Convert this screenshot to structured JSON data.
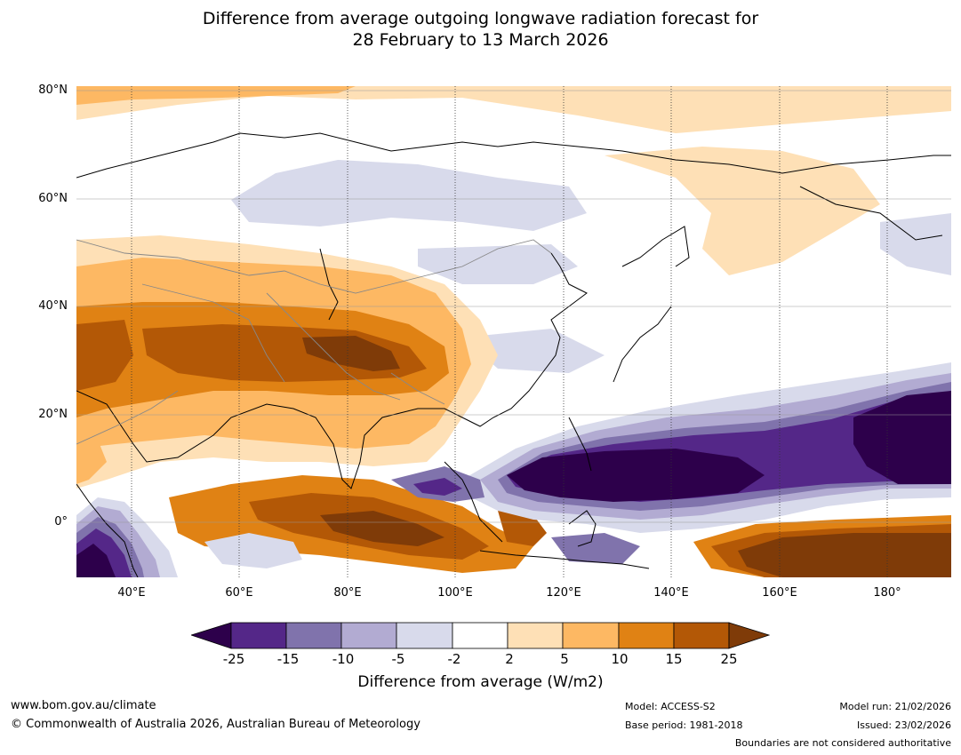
{
  "title": {
    "line1": "Difference from average outgoing longwave radiation forecast for",
    "line2": "28 February to 13 March 2026"
  },
  "map": {
    "lat_labels": [
      "80°N",
      "60°N",
      "40°N",
      "20°N",
      "0°"
    ],
    "lon_labels": [
      "40°E",
      "60°E",
      "80°E",
      "100°E",
      "120°E",
      "140°E",
      "160°E",
      "180°"
    ],
    "extent": {
      "lon_min": 30,
      "lon_max": 192,
      "lat_min": -10,
      "lat_max": 81
    }
  },
  "colorbar": {
    "ticks": [
      "-25",
      "-15",
      "-10",
      "-5",
      "-2",
      "2",
      "5",
      "10",
      "15",
      "25"
    ],
    "colors": [
      "#2d004b",
      "#542788",
      "#8073ac",
      "#b2abd2",
      "#d8daeb",
      "#ffffff",
      "#fee0b6",
      "#fdb863",
      "#e08214",
      "#b35806",
      "#7f3b08"
    ],
    "label": "Difference from average (W/m2)"
  },
  "footer": {
    "website": "www.bom.gov.au/climate",
    "copyright": "© Commonwealth of Australia 2026, Australian Bureau of Meteorology",
    "model": "Model: ACCESS-S2",
    "base_period": "Base period: 1981-2018",
    "model_run": "Model run: 21/02/2026",
    "issued": "Issued: 23/02/2026",
    "disclaimer": "Boundaries are not considered authoritative"
  }
}
